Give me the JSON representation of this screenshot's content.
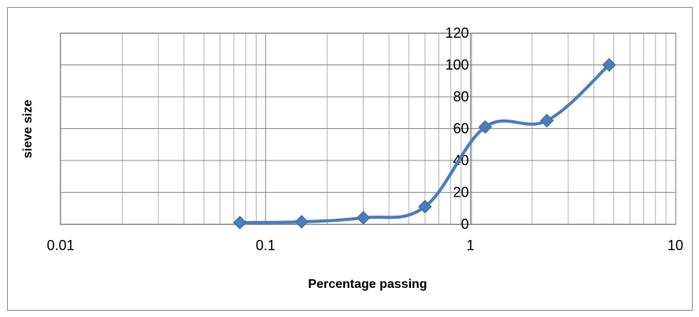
{
  "chart_data": {
    "type": "scatter",
    "title": "",
    "xlabel": "Percentage passing",
    "ylabel": "sieve size",
    "x_scale": "log",
    "xlim": [
      0.01,
      10
    ],
    "ylim": [
      0,
      120
    ],
    "x_ticks": [
      "0.01",
      "0.1",
      "1",
      "10"
    ],
    "y_ticks": [
      "0",
      "20",
      "40",
      "60",
      "80",
      "100",
      "120"
    ],
    "grid": true,
    "line_style": "smoothed",
    "colors": {
      "series": "#4a7ebb",
      "grid": "#8c8c8c"
    },
    "series": [
      {
        "marker": "diamond",
        "x": [
          0.075,
          0.15,
          0.3,
          0.6,
          1.18,
          2.36,
          4.75
        ],
        "y": [
          1,
          1.5,
          4,
          11,
          61,
          65,
          100
        ]
      }
    ]
  }
}
